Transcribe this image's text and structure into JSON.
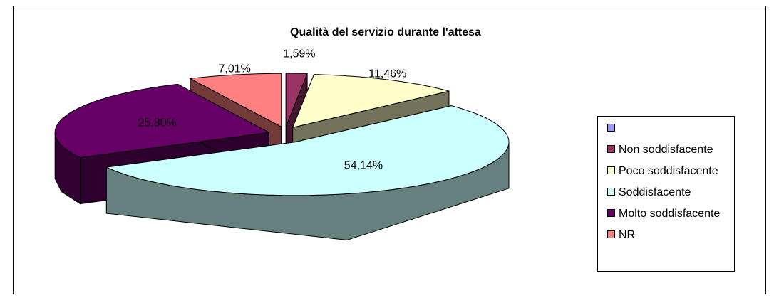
{
  "chart_data": {
    "type": "pie3d",
    "title": "Qualità del servizio durante l'attesa",
    "categories": [
      null,
      "Non soddisfacente",
      "Poco soddisfacente",
      "Soddisfacente",
      "Molto soddisfacente",
      "NR"
    ],
    "values": [
      null,
      1.59,
      11.46,
      54.14,
      25.8,
      7.01
    ],
    "value_labels": [
      null,
      "1,59%",
      "11,46%",
      "54,14%",
      "25,80%",
      "7,01%"
    ],
    "colors": [
      "#9999ff",
      "#993366",
      "#ffffcc",
      "#ccffff",
      "#660066",
      "#ff8080"
    ],
    "legend": "right"
  }
}
